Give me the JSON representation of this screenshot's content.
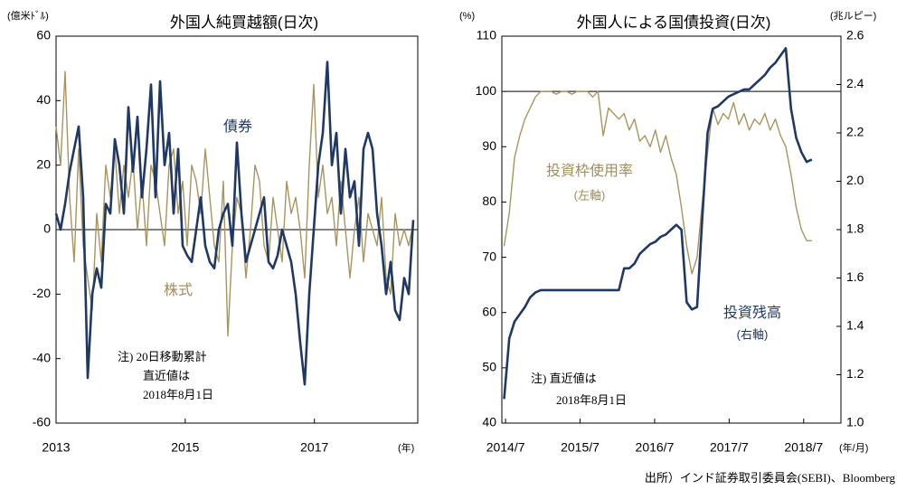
{
  "chart_data": [
    {
      "type": "line",
      "title": "外国人純買越額(日次)",
      "y_label": "(億米ﾄﾞﾙ)",
      "x_label": "(年)",
      "annotations": [
        "注) 20日移動累計",
        "直近値は",
        "2018年8月1日"
      ],
      "xlim": [
        2013,
        2018.6
      ],
      "xticks": [
        2013,
        2015,
        2017
      ],
      "ylim": [
        -60,
        60
      ],
      "yticks": [
        -60,
        -40,
        -20,
        0,
        20,
        40,
        60
      ],
      "reference_line": 0,
      "x": [
        2013,
        2013.07,
        2013.14,
        2013.21,
        2013.28,
        2013.35,
        2013.42,
        2013.49,
        2013.56,
        2013.63,
        2013.7,
        2013.77,
        2013.84,
        2013.91,
        2013.98,
        2014.05,
        2014.12,
        2014.19,
        2014.26,
        2014.33,
        2014.4,
        2014.47,
        2014.54,
        2014.61,
        2014.68,
        2014.75,
        2014.82,
        2014.89,
        2014.96,
        2015.03,
        2015.1,
        2015.17,
        2015.24,
        2015.31,
        2015.38,
        2015.45,
        2015.52,
        2015.59,
        2015.66,
        2015.73,
        2015.8,
        2015.87,
        2015.94,
        2016.01,
        2016.08,
        2016.15,
        2016.22,
        2016.29,
        2016.36,
        2016.43,
        2016.5,
        2016.57,
        2016.64,
        2016.71,
        2016.78,
        2016.85,
        2016.92,
        2016.99,
        2017.06,
        2017.13,
        2017.2,
        2017.27,
        2017.34,
        2017.41,
        2017.48,
        2017.55,
        2017.62,
        2017.69,
        2017.76,
        2017.83,
        2017.9,
        2017.97,
        2018.04,
        2018.11,
        2018.18,
        2018.25,
        2018.32,
        2018.39,
        2018.46,
        2018.53
      ],
      "series": [
        {
          "name": "株式",
          "color": "#a8945f",
          "values": [
            32,
            20,
            49,
            10,
            -10,
            25,
            -5,
            -15,
            -25,
            5,
            -10,
            20,
            10,
            25,
            5,
            20,
            10,
            22,
            0,
            15,
            -5,
            20,
            15,
            5,
            -5,
            20,
            25,
            5,
            15,
            -5,
            20,
            15,
            5,
            25,
            10,
            -5,
            -10,
            15,
            -33,
            -5,
            10,
            5,
            -15,
            0,
            20,
            15,
            -5,
            -10,
            10,
            0,
            -10,
            15,
            5,
            10,
            0,
            -15,
            20,
            45,
            10,
            20,
            5,
            10,
            -5,
            15,
            0,
            -15,
            0,
            10,
            -10,
            5,
            0,
            -5,
            10,
            -15,
            -20,
            5,
            -5,
            0,
            -5,
            2
          ]
        },
        {
          "name": "債券",
          "color": "#1f3864",
          "values": [
            5,
            0,
            8,
            18,
            25,
            32,
            10,
            -46,
            -20,
            -12,
            -18,
            8,
            5,
            28,
            20,
            5,
            38,
            18,
            35,
            10,
            25,
            45,
            10,
            46,
            20,
            30,
            5,
            25,
            -5,
            -8,
            -10,
            0,
            10,
            -5,
            -10,
            -12,
            0,
            5,
            8,
            -5,
            27,
            5,
            -10,
            -5,
            0,
            5,
            10,
            -10,
            -12,
            -8,
            0,
            -5,
            -10,
            -20,
            -35,
            -48,
            -20,
            0,
            20,
            30,
            52,
            20,
            30,
            5,
            25,
            10,
            15,
            -5,
            25,
            30,
            25,
            5,
            -5,
            -20,
            -10,
            -25,
            -28,
            -15,
            -20,
            3
          ]
        }
      ]
    },
    {
      "type": "line",
      "title": "外国人による国債投資(日次)",
      "y_label": "(%)",
      "y2_label": "(兆ルピー)",
      "x_label": "(年/月)",
      "annotations": [
        "(左軸)",
        "(右軸)",
        "注) 直近値は",
        "2018年8月1日"
      ],
      "xlim": [
        2014.45,
        2019.0
      ],
      "xticks": [
        {
          "value": 2014.5,
          "label": "2014/7"
        },
        {
          "value": 2015.5,
          "label": "2015/7"
        },
        {
          "value": 2016.5,
          "label": "2016/7"
        },
        {
          "value": 2017.5,
          "label": "2017/7"
        },
        {
          "value": 2018.5,
          "label": "2018/7"
        }
      ],
      "ylim": [
        40,
        110
      ],
      "yticks": [
        40,
        50,
        60,
        70,
        80,
        90,
        100,
        110
      ],
      "reference_line": 100,
      "y2lim": [
        1.0,
        2.6
      ],
      "y2ticks": [
        {
          "value": 1.0,
          "label": "1.0"
        },
        1.2,
        1.4,
        1.6,
        1.8,
        {
          "value": 2.0,
          "label": "2.0"
        },
        2.2,
        2.4,
        2.6
      ],
      "x": [
        2014.48,
        2014.55,
        2014.62,
        2014.69,
        2014.76,
        2014.83,
        2014.9,
        2014.97,
        2015.04,
        2015.11,
        2015.18,
        2015.25,
        2015.32,
        2015.39,
        2015.46,
        2015.53,
        2015.6,
        2015.67,
        2015.74,
        2015.81,
        2015.88,
        2015.95,
        2016.02,
        2016.09,
        2016.16,
        2016.23,
        2016.3,
        2016.37,
        2016.44,
        2016.51,
        2016.58,
        2016.65,
        2016.72,
        2016.79,
        2016.86,
        2016.93,
        2017.0,
        2017.07,
        2017.14,
        2017.21,
        2017.28,
        2017.35,
        2017.42,
        2017.49,
        2017.56,
        2017.63,
        2017.7,
        2017.77,
        2017.84,
        2017.91,
        2017.98,
        2018.05,
        2018.12,
        2018.19,
        2018.26,
        2018.33,
        2018.4,
        2018.47,
        2018.54,
        2018.61
      ],
      "series": [
        {
          "name": "投資枠使用率",
          "color": "#a8945f",
          "values": [
            72,
            78,
            88,
            92,
            95,
            97,
            99,
            100,
            100,
            100,
            99.5,
            100,
            100,
            99.5,
            100,
            100,
            100,
            99,
            100,
            92,
            97,
            96,
            95,
            96,
            93,
            95,
            91,
            92,
            90,
            93,
            89,
            92,
            88,
            85,
            79,
            72,
            67,
            70,
            80,
            89,
            97,
            94,
            96,
            95,
            98,
            94,
            96,
            93,
            95,
            94,
            96,
            93,
            95,
            92,
            90,
            85,
            79,
            75,
            73,
            73
          ]
        },
        {
          "name": "投資残高",
          "color": "#1f3864",
          "axis": "y2",
          "values": [
            1.1,
            1.35,
            1.42,
            1.45,
            1.48,
            1.52,
            1.54,
            1.55,
            1.55,
            1.55,
            1.55,
            1.55,
            1.55,
            1.55,
            1.55,
            1.55,
            1.55,
            1.55,
            1.55,
            1.55,
            1.55,
            1.55,
            1.55,
            1.64,
            1.64,
            1.66,
            1.7,
            1.72,
            1.74,
            1.75,
            1.77,
            1.78,
            1.8,
            1.82,
            1.8,
            1.5,
            1.47,
            1.48,
            1.85,
            2.2,
            2.3,
            2.31,
            2.33,
            2.35,
            2.36,
            2.37,
            2.38,
            2.38,
            2.4,
            2.42,
            2.44,
            2.47,
            2.49,
            2.52,
            2.55,
            2.3,
            2.18,
            2.12,
            2.08,
            2.09
          ]
        }
      ]
    }
  ],
  "source": "出所）インド証券取引委員会(SEBI)、Bloomberg"
}
